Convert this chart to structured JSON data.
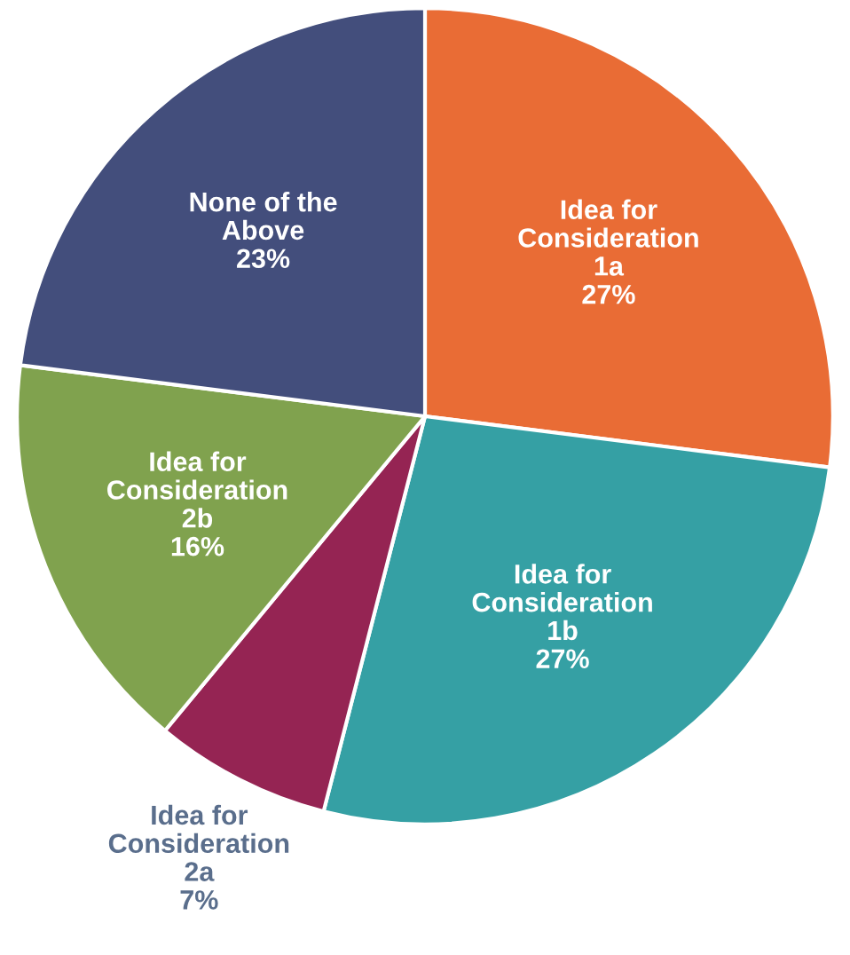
{
  "chart_data": {
    "type": "pie",
    "categories": [
      "Idea for\nConsideration\n1a",
      "Idea for\nConsideration\n1b",
      "Idea for\nConsideration\n2a",
      "Idea for\nConsideration\n2b",
      "None of the\nAbove"
    ],
    "values": [
      27,
      27,
      7,
      16,
      23
    ],
    "value_labels": [
      "27%",
      "27%",
      "7%",
      "16%",
      "23%"
    ],
    "colors": [
      "#e96c35",
      "#35a0a4",
      "#952453",
      "#80a24e",
      "#434e7c"
    ],
    "legend": false
  }
}
